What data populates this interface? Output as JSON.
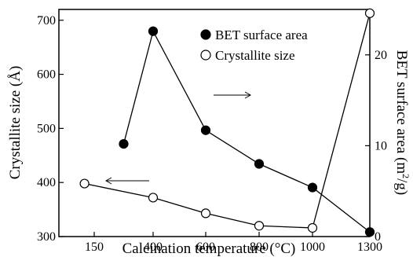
{
  "chart_data": {
    "type": "line",
    "x_tick_labels": [
      "150",
      "400",
      "600",
      "800",
      "1000",
      "1300"
    ],
    "xlabel": "Calcination temperature (",
    "xlabel_unit": "°C)",
    "ylabel_left": "Crystallite size (Å)",
    "ylabel_right": "BET surface area (m",
    "ylabel_right_sup": "2",
    "ylabel_right_end": "/g)",
    "y_left_ticks": [
      "300",
      "400",
      "500",
      "600",
      "700"
    ],
    "y_right_ticks": [
      "0",
      "10",
      "20"
    ],
    "ylim_left": [
      300,
      720
    ],
    "ylim_right": [
      0,
      25
    ],
    "grid": false,
    "legend_position": "top-right",
    "series": [
      {
        "name": "BET surface area",
        "axis": "right",
        "marker": "filled-circle",
        "color": "#000000",
        "x_index": [
          0.5,
          1,
          2,
          3,
          4,
          5
        ],
        "values": [
          10.2,
          22.6,
          11.7,
          8.0,
          5.4,
          0.5
        ]
      },
      {
        "name": "Crystallite size",
        "axis": "left",
        "marker": "open-circle",
        "color": "#000000",
        "x_index": [
          -0.3,
          1,
          2,
          3,
          4,
          5
        ],
        "values": [
          398,
          372,
          343,
          320,
          316,
          713
        ]
      }
    ]
  }
}
